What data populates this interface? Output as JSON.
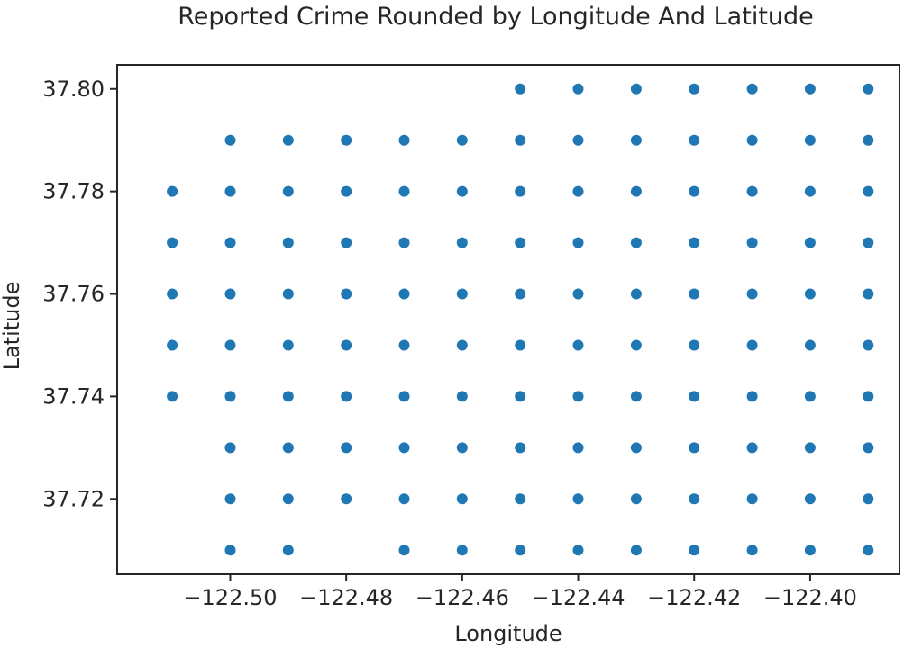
{
  "chart_data": {
    "type": "scatter",
    "title": "Reported Crime Rounded by Longitude And Latitude",
    "xlabel": "Longitude",
    "ylabel": "Latitude",
    "xlim": [
      -122.5195,
      -122.3846
    ],
    "ylim": [
      37.7053,
      37.8047
    ],
    "xticks": [
      -122.5,
      -122.48,
      -122.46,
      -122.44,
      -122.42,
      -122.4
    ],
    "xtick_labels": [
      "−122.50",
      "−122.48",
      "−122.46",
      "−122.44",
      "−122.42",
      "−122.40"
    ],
    "yticks": [
      37.72,
      37.74,
      37.76,
      37.78,
      37.8
    ],
    "ytick_labels": [
      "37.72",
      "37.74",
      "37.76",
      "37.78",
      "37.80"
    ],
    "grid": false,
    "marker_color": "#1f77b4",
    "points": [
      {
        "x": -122.45,
        "y": 37.8
      },
      {
        "x": -122.44,
        "y": 37.8
      },
      {
        "x": -122.43,
        "y": 37.8
      },
      {
        "x": -122.42,
        "y": 37.8
      },
      {
        "x": -122.41,
        "y": 37.8
      },
      {
        "x": -122.4,
        "y": 37.8
      },
      {
        "x": -122.39,
        "y": 37.8
      },
      {
        "x": -122.5,
        "y": 37.79
      },
      {
        "x": -122.49,
        "y": 37.79
      },
      {
        "x": -122.48,
        "y": 37.79
      },
      {
        "x": -122.47,
        "y": 37.79
      },
      {
        "x": -122.46,
        "y": 37.79
      },
      {
        "x": -122.45,
        "y": 37.79
      },
      {
        "x": -122.44,
        "y": 37.79
      },
      {
        "x": -122.43,
        "y": 37.79
      },
      {
        "x": -122.42,
        "y": 37.79
      },
      {
        "x": -122.41,
        "y": 37.79
      },
      {
        "x": -122.4,
        "y": 37.79
      },
      {
        "x": -122.39,
        "y": 37.79
      },
      {
        "x": -122.51,
        "y": 37.78
      },
      {
        "x": -122.5,
        "y": 37.78
      },
      {
        "x": -122.49,
        "y": 37.78
      },
      {
        "x": -122.48,
        "y": 37.78
      },
      {
        "x": -122.47,
        "y": 37.78
      },
      {
        "x": -122.46,
        "y": 37.78
      },
      {
        "x": -122.45,
        "y": 37.78
      },
      {
        "x": -122.44,
        "y": 37.78
      },
      {
        "x": -122.43,
        "y": 37.78
      },
      {
        "x": -122.42,
        "y": 37.78
      },
      {
        "x": -122.41,
        "y": 37.78
      },
      {
        "x": -122.4,
        "y": 37.78
      },
      {
        "x": -122.39,
        "y": 37.78
      },
      {
        "x": -122.51,
        "y": 37.77
      },
      {
        "x": -122.5,
        "y": 37.77
      },
      {
        "x": -122.49,
        "y": 37.77
      },
      {
        "x": -122.48,
        "y": 37.77
      },
      {
        "x": -122.47,
        "y": 37.77
      },
      {
        "x": -122.46,
        "y": 37.77
      },
      {
        "x": -122.45,
        "y": 37.77
      },
      {
        "x": -122.44,
        "y": 37.77
      },
      {
        "x": -122.43,
        "y": 37.77
      },
      {
        "x": -122.42,
        "y": 37.77
      },
      {
        "x": -122.41,
        "y": 37.77
      },
      {
        "x": -122.4,
        "y": 37.77
      },
      {
        "x": -122.39,
        "y": 37.77
      },
      {
        "x": -122.51,
        "y": 37.76
      },
      {
        "x": -122.5,
        "y": 37.76
      },
      {
        "x": -122.49,
        "y": 37.76
      },
      {
        "x": -122.48,
        "y": 37.76
      },
      {
        "x": -122.47,
        "y": 37.76
      },
      {
        "x": -122.46,
        "y": 37.76
      },
      {
        "x": -122.45,
        "y": 37.76
      },
      {
        "x": -122.44,
        "y": 37.76
      },
      {
        "x": -122.43,
        "y": 37.76
      },
      {
        "x": -122.42,
        "y": 37.76
      },
      {
        "x": -122.41,
        "y": 37.76
      },
      {
        "x": -122.4,
        "y": 37.76
      },
      {
        "x": -122.39,
        "y": 37.76
      },
      {
        "x": -122.51,
        "y": 37.75
      },
      {
        "x": -122.5,
        "y": 37.75
      },
      {
        "x": -122.49,
        "y": 37.75
      },
      {
        "x": -122.48,
        "y": 37.75
      },
      {
        "x": -122.47,
        "y": 37.75
      },
      {
        "x": -122.46,
        "y": 37.75
      },
      {
        "x": -122.45,
        "y": 37.75
      },
      {
        "x": -122.44,
        "y": 37.75
      },
      {
        "x": -122.43,
        "y": 37.75
      },
      {
        "x": -122.42,
        "y": 37.75
      },
      {
        "x": -122.41,
        "y": 37.75
      },
      {
        "x": -122.4,
        "y": 37.75
      },
      {
        "x": -122.39,
        "y": 37.75
      },
      {
        "x": -122.51,
        "y": 37.74
      },
      {
        "x": -122.5,
        "y": 37.74
      },
      {
        "x": -122.49,
        "y": 37.74
      },
      {
        "x": -122.48,
        "y": 37.74
      },
      {
        "x": -122.47,
        "y": 37.74
      },
      {
        "x": -122.46,
        "y": 37.74
      },
      {
        "x": -122.45,
        "y": 37.74
      },
      {
        "x": -122.44,
        "y": 37.74
      },
      {
        "x": -122.43,
        "y": 37.74
      },
      {
        "x": -122.42,
        "y": 37.74
      },
      {
        "x": -122.41,
        "y": 37.74
      },
      {
        "x": -122.4,
        "y": 37.74
      },
      {
        "x": -122.39,
        "y": 37.74
      },
      {
        "x": -122.5,
        "y": 37.73
      },
      {
        "x": -122.49,
        "y": 37.73
      },
      {
        "x": -122.48,
        "y": 37.73
      },
      {
        "x": -122.47,
        "y": 37.73
      },
      {
        "x": -122.46,
        "y": 37.73
      },
      {
        "x": -122.45,
        "y": 37.73
      },
      {
        "x": -122.44,
        "y": 37.73
      },
      {
        "x": -122.43,
        "y": 37.73
      },
      {
        "x": -122.42,
        "y": 37.73
      },
      {
        "x": -122.41,
        "y": 37.73
      },
      {
        "x": -122.4,
        "y": 37.73
      },
      {
        "x": -122.39,
        "y": 37.73
      },
      {
        "x": -122.5,
        "y": 37.72
      },
      {
        "x": -122.49,
        "y": 37.72
      },
      {
        "x": -122.48,
        "y": 37.72
      },
      {
        "x": -122.47,
        "y": 37.72
      },
      {
        "x": -122.46,
        "y": 37.72
      },
      {
        "x": -122.45,
        "y": 37.72
      },
      {
        "x": -122.44,
        "y": 37.72
      },
      {
        "x": -122.43,
        "y": 37.72
      },
      {
        "x": -122.42,
        "y": 37.72
      },
      {
        "x": -122.41,
        "y": 37.72
      },
      {
        "x": -122.4,
        "y": 37.72
      },
      {
        "x": -122.39,
        "y": 37.72
      },
      {
        "x": -122.5,
        "y": 37.71
      },
      {
        "x": -122.49,
        "y": 37.71
      },
      {
        "x": -122.47,
        "y": 37.71
      },
      {
        "x": -122.46,
        "y": 37.71
      },
      {
        "x": -122.45,
        "y": 37.71
      },
      {
        "x": -122.44,
        "y": 37.71
      },
      {
        "x": -122.43,
        "y": 37.71
      },
      {
        "x": -122.42,
        "y": 37.71
      },
      {
        "x": -122.41,
        "y": 37.71
      },
      {
        "x": -122.4,
        "y": 37.71
      },
      {
        "x": -122.39,
        "y": 37.71
      }
    ]
  }
}
